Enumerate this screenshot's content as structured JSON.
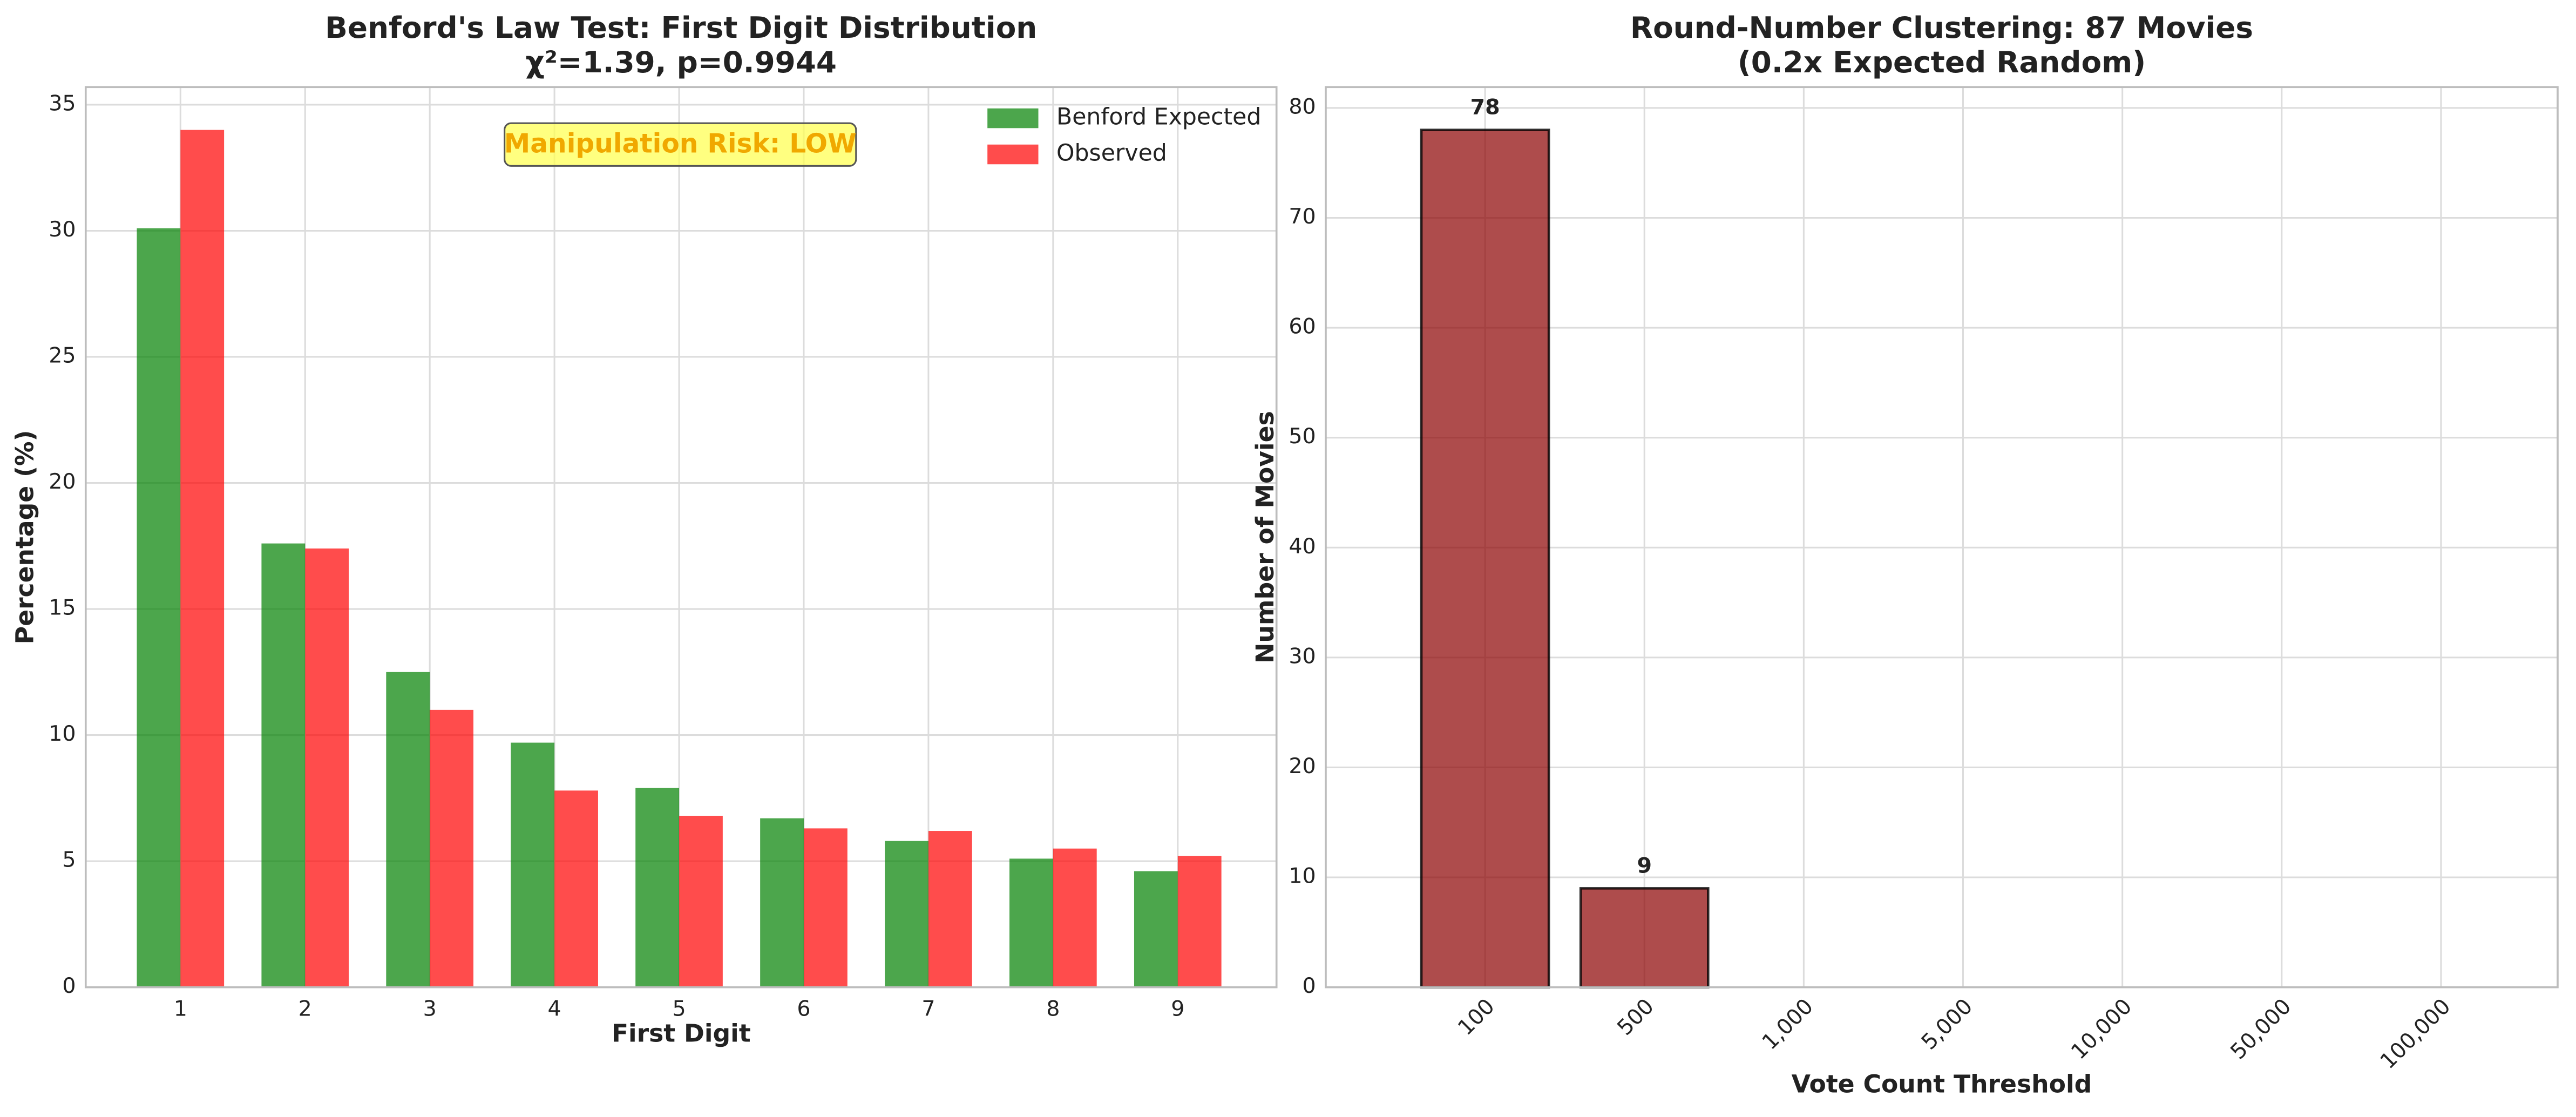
{
  "chart_data": [
    {
      "type": "bar",
      "title": "Benford's Law Test: First Digit Distribution",
      "subtitle": "χ²=1.39, p=0.9944",
      "xlabel": "First Digit",
      "ylabel": "Percentage (%)",
      "annotation": "Manipulation Risk: LOW",
      "categories": [
        "1",
        "2",
        "3",
        "4",
        "5",
        "6",
        "7",
        "8",
        "9"
      ],
      "series": [
        {
          "name": "Benford Expected",
          "color": "green",
          "values": [
            30.1,
            17.6,
            12.5,
            9.7,
            7.9,
            6.7,
            5.8,
            5.1,
            4.6
          ]
        },
        {
          "name": "Observed",
          "color": "red",
          "values": [
            34.0,
            17.4,
            11.0,
            7.8,
            6.8,
            6.3,
            6.2,
            5.5,
            5.2
          ]
        }
      ],
      "ylim": [
        0,
        35.7
      ],
      "yticks": [
        0,
        5,
        10,
        15,
        20,
        25,
        30,
        35
      ],
      "grid": true,
      "legend": "upper right"
    },
    {
      "type": "bar",
      "title": "Round-Number Clustering: 87 Movies",
      "subtitle": "(0.2x Expected Random)",
      "xlabel": "Vote Count Threshold",
      "ylabel": "Number of Movies",
      "categories": [
        "100",
        "500",
        "1,000",
        "5,000",
        "10,000",
        "50,000",
        "100,000"
      ],
      "series": [
        {
          "color": "darkred",
          "values": [
            78,
            9,
            0,
            0,
            0,
            0,
            0
          ]
        }
      ],
      "ylim": [
        0,
        81.9
      ],
      "yticks": [
        0,
        10,
        20,
        30,
        40,
        50,
        60,
        70,
        80
      ],
      "grid": true,
      "xtick_rotation": 45
    }
  ]
}
